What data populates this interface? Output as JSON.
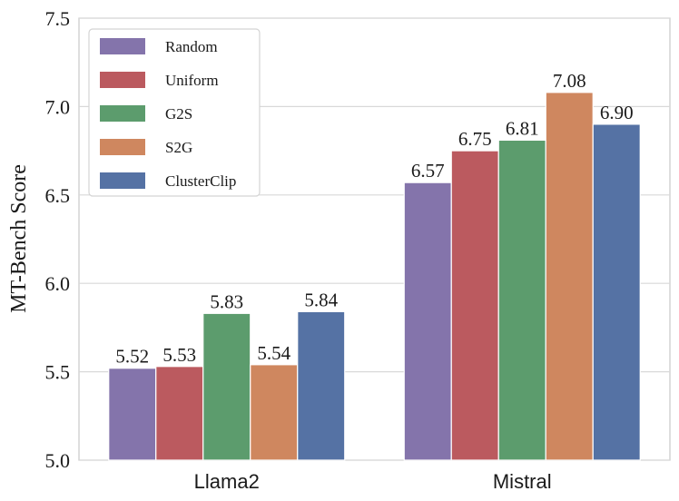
{
  "chart_data": {
    "type": "bar",
    "categories": [
      "Llama2",
      "Mistral"
    ],
    "series": [
      {
        "name": "Random",
        "values": [
          5.52,
          6.57
        ],
        "color": "#8474ab"
      },
      {
        "name": "Uniform",
        "values": [
          5.53,
          6.75
        ],
        "color": "#bb5a5f"
      },
      {
        "name": "G2S",
        "values": [
          5.83,
          6.81
        ],
        "color": "#5c9c6d"
      },
      {
        "name": "S2G",
        "values": [
          5.54,
          7.08
        ],
        "color": "#cf875f"
      },
      {
        "name": "ClusterClip",
        "values": [
          5.84,
          6.9
        ],
        "color": "#5572a4"
      }
    ],
    "value_labels": [
      [
        "5.52",
        "6.57"
      ],
      [
        "5.53",
        "6.75"
      ],
      [
        "5.83",
        "6.81"
      ],
      [
        "5.54",
        "7.08"
      ],
      [
        "5.84",
        "6.90"
      ]
    ],
    "ylabel": "MT-Bench Score",
    "xlabel": "",
    "ylim": [
      5.0,
      7.5
    ],
    "yticks": [
      "5.0",
      "5.5",
      "6.0",
      "6.5",
      "7.0",
      "7.5"
    ],
    "grid": "horizontal",
    "legend_position": "top-left"
  }
}
